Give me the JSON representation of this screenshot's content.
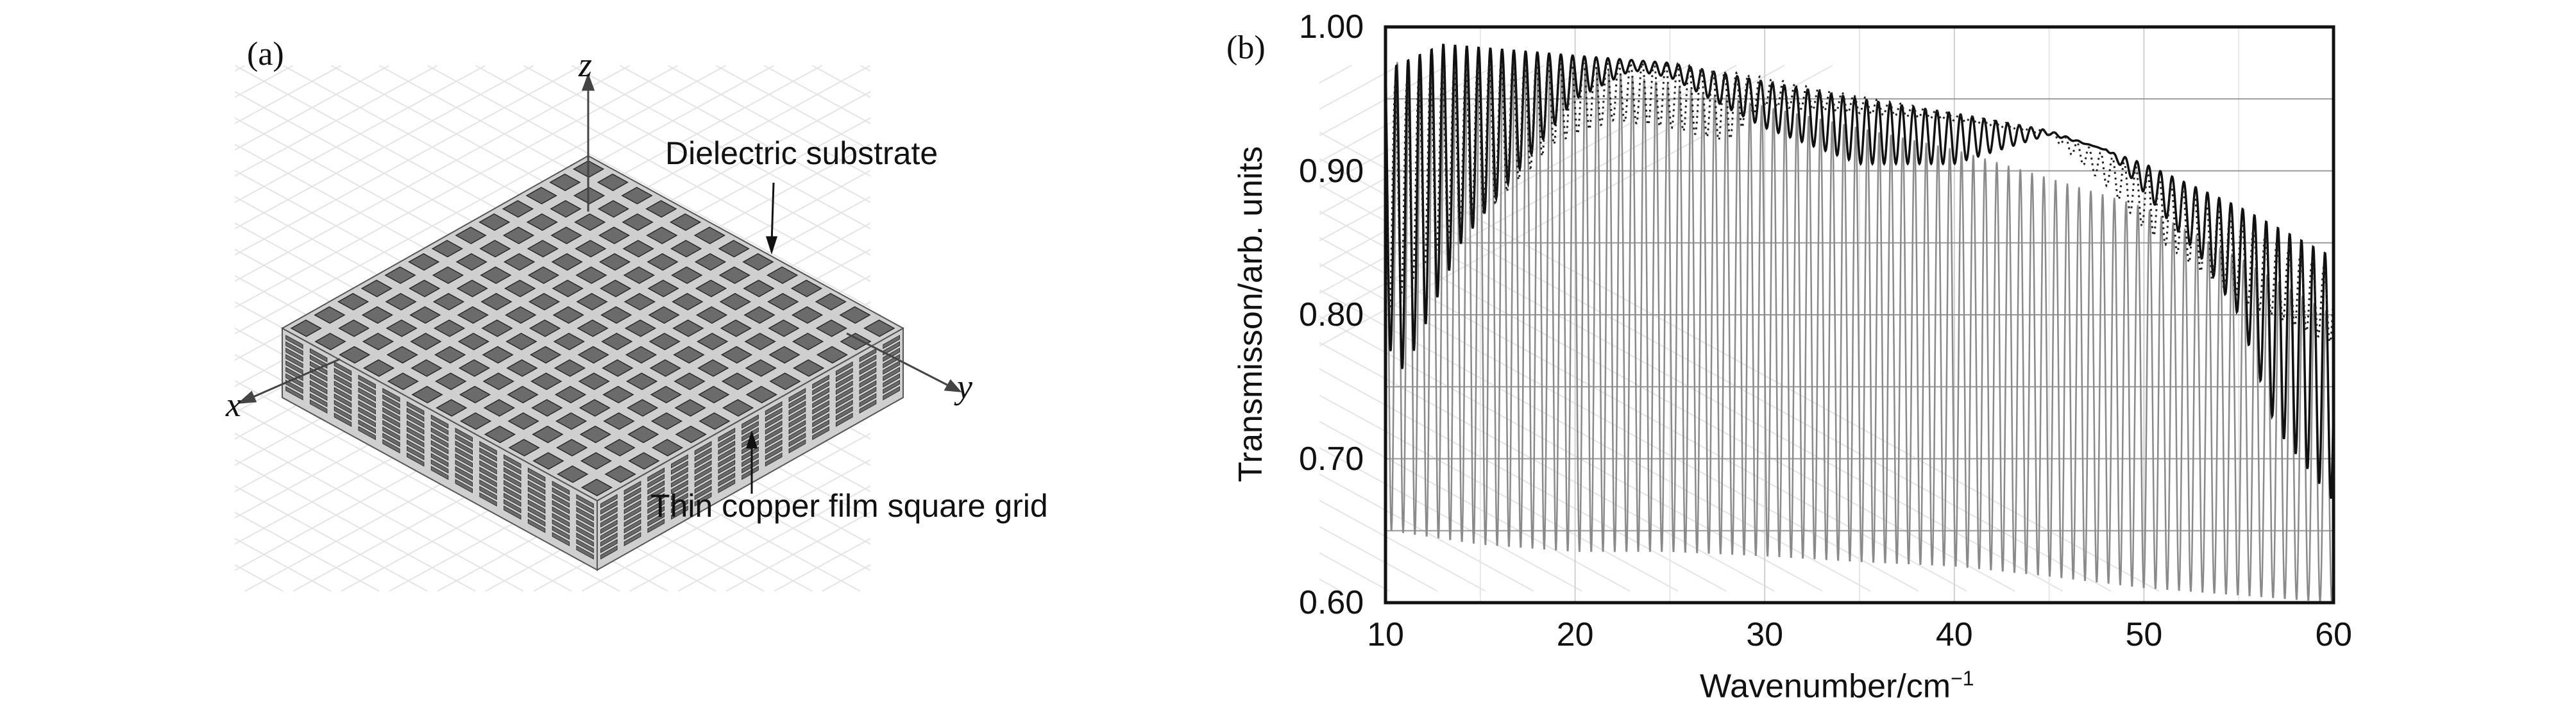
{
  "panel_a": {
    "label": "(a)",
    "axis_x": "x",
    "axis_y": "y",
    "axis_z": "z",
    "annotation_substrate": "Dielectric substrate",
    "annotation_grid": "Thin copper film square grid",
    "grid_cells": 13,
    "colors": {
      "copper": "#6b6b6b",
      "substrate": "#cfcfcf",
      "background_grid": "#e4e4e4"
    }
  },
  "chart_data": {
    "type": "line",
    "panel_label": "(b)",
    "title": "",
    "xlabel": "Wavenumber/cm",
    "xlabel_sup": "−1",
    "ylabel": "Transmisson/arb. units",
    "xlim": [
      10,
      60
    ],
    "ylim": [
      0.6,
      1.0
    ],
    "xticks": [
      "10",
      "20",
      "30",
      "40",
      "50",
      "60"
    ],
    "yticks": [
      "0.60",
      "0.70",
      "0.80",
      "0.90",
      "1.00"
    ],
    "grid": true,
    "legend": "none",
    "series": [
      {
        "name": "gray oscillating curve",
        "style": "solid",
        "color": "#8a8a8a",
        "period": 0.62,
        "upper_envelope": {
          "x": [
            10,
            15,
            20,
            25,
            30,
            35,
            40,
            45,
            50,
            55,
            60
          ],
          "y": [
            0.975,
            0.98,
            0.975,
            0.96,
            0.945,
            0.93,
            0.915,
            0.895,
            0.875,
            0.84,
            0.8
          ]
        },
        "lower_envelope": {
          "x": [
            10,
            15,
            20,
            25,
            30,
            35,
            40,
            45,
            50,
            55,
            60
          ],
          "y": [
            0.65,
            0.64,
            0.635,
            0.635,
            0.632,
            0.628,
            0.625,
            0.618,
            0.61,
            0.605,
            0.6
          ]
        }
      },
      {
        "name": "black solid curve",
        "style": "solid",
        "color": "#111111",
        "period": 0.62,
        "upper_envelope": {
          "x": [
            10,
            13,
            20,
            25,
            30,
            35,
            40,
            45,
            50,
            55,
            60
          ],
          "y": [
            0.97,
            0.988,
            0.98,
            0.975,
            0.962,
            0.95,
            0.94,
            0.928,
            0.905,
            0.875,
            0.84
          ]
        },
        "lower_envelope": {
          "x": [
            10,
            11,
            14,
            17,
            20,
            23,
            25,
            30,
            35,
            40,
            45,
            48,
            50,
            53,
            55,
            57,
            60
          ],
          "y": [
            0.78,
            0.76,
            0.85,
            0.9,
            0.95,
            0.97,
            0.965,
            0.93,
            0.905,
            0.905,
            0.925,
            0.915,
            0.885,
            0.84,
            0.8,
            0.72,
            0.67
          ]
        }
      },
      {
        "name": "black dotted curve",
        "style": "dotted",
        "color": "#222222",
        "period": 0.62,
        "upper_envelope": {
          "x": [
            10,
            15,
            20,
            25,
            30,
            35,
            40,
            45,
            50,
            55,
            60
          ],
          "y": [
            0.96,
            0.975,
            0.975,
            0.975,
            0.965,
            0.952,
            0.94,
            0.928,
            0.9,
            0.865,
            0.83
          ]
        },
        "lower_envelope": {
          "x": [
            10,
            13,
            16,
            19,
            22,
            25,
            28,
            30,
            35,
            40,
            45,
            48,
            50,
            55,
            60
          ],
          "y": [
            0.8,
            0.85,
            0.88,
            0.92,
            0.935,
            0.93,
            0.92,
            0.945,
            0.94,
            0.935,
            0.925,
            0.89,
            0.86,
            0.81,
            0.78
          ]
        }
      }
    ]
  }
}
